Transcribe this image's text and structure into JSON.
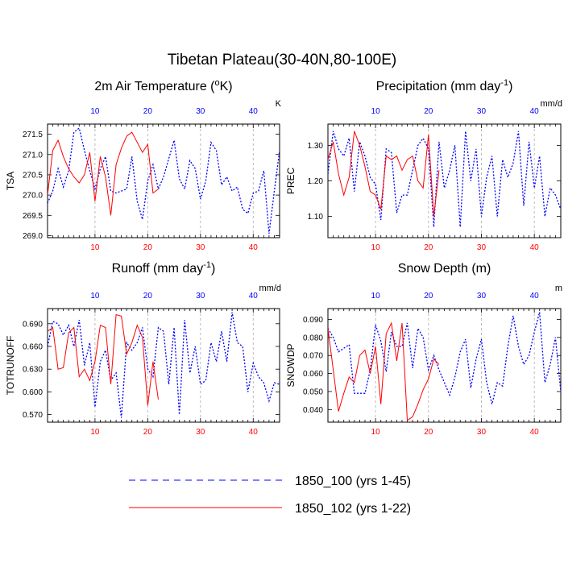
{
  "title": "Tibetan Plateau(30-40N,80-100E)",
  "colors": {
    "series_a": "#0000ff",
    "series_b": "#ff0000",
    "grid": "#aaaaaa",
    "axis": "#000000"
  },
  "legend": {
    "entries": [
      {
        "label": "1850_100 (yrs 1-45)",
        "color": "#0000ff",
        "dash": "dashed"
      },
      {
        "label": "1850_102 (yrs 1-22)",
        "color": "#ff0000",
        "dash": "solid"
      }
    ]
  },
  "chart_data": [
    {
      "type": "line",
      "id": "tsa",
      "title": "2m Air Temperature (°K)",
      "title_main": "2m Air Temperature (",
      "title_sup": "o",
      "title_tail": "K)",
      "ylabel": "TSA",
      "units": "K",
      "xlim": [
        1,
        45
      ],
      "ylim": [
        268.95,
        271.75
      ],
      "yticks": [
        269.0,
        269.5,
        270.0,
        270.5,
        271.0,
        271.5
      ],
      "ytick_labels": [
        "269.0",
        "269.5",
        "270.0",
        "270.5",
        "271.0",
        "271.5"
      ],
      "xticks": [
        10,
        20,
        30,
        40
      ],
      "xtick_labels": [
        "10",
        "20",
        "30",
        "40"
      ],
      "series": [
        {
          "name": "1850_100 (yrs 1-45)",
          "values": [
            269.8,
            270.1,
            270.65,
            270.2,
            270.6,
            271.55,
            271.65,
            271.1,
            270.6,
            270.15,
            270.65,
            270.95,
            270.1,
            270.05,
            270.1,
            270.15,
            270.95,
            269.85,
            269.4,
            270.35,
            270.75,
            270.15,
            270.45,
            270.9,
            271.35,
            270.4,
            270.15,
            270.85,
            270.65,
            269.9,
            270.35,
            271.3,
            271.1,
            270.25,
            270.45,
            270.1,
            270.2,
            269.65,
            269.55,
            270.05,
            270.1,
            270.6,
            269.05,
            270.1,
            271.1
          ]
        },
        {
          "name": "1850_102 (yrs 1-22)",
          "values": [
            270.0,
            271.1,
            271.35,
            270.95,
            270.65,
            270.45,
            270.3,
            270.5,
            271.05,
            269.85,
            270.95,
            270.45,
            269.5,
            270.75,
            271.15,
            271.45,
            271.55,
            271.3,
            271.05,
            271.25,
            270.05,
            270.15
          ]
        }
      ]
    },
    {
      "type": "line",
      "id": "prec",
      "title": "Precipitation (mm day-1)",
      "title_main": "Precipitation (mm day",
      "title_sup": "-1",
      "title_tail": ")",
      "ylabel": "PREC",
      "units": "mm/d",
      "xlim": [
        1,
        45
      ],
      "ylim": [
        1.04,
        1.36
      ],
      "yticks": [
        1.1,
        1.2,
        1.3
      ],
      "ytick_labels": [
        "1.10",
        "1.20",
        "1.30"
      ],
      "xticks": [
        10,
        20,
        30,
        40
      ],
      "xtick_labels": [
        "10",
        "20",
        "30",
        "40"
      ],
      "series": [
        {
          "name": "1850_100 (yrs 1-45)",
          "values": [
            1.22,
            1.34,
            1.29,
            1.27,
            1.32,
            1.17,
            1.31,
            1.27,
            1.21,
            1.19,
            1.09,
            1.29,
            1.28,
            1.11,
            1.16,
            1.16,
            1.23,
            1.3,
            1.32,
            1.29,
            1.07,
            1.31,
            1.18,
            1.23,
            1.3,
            1.07,
            1.34,
            1.2,
            1.29,
            1.1,
            1.21,
            1.27,
            1.1,
            1.26,
            1.21,
            1.25,
            1.34,
            1.13,
            1.31,
            1.18,
            1.27,
            1.1,
            1.18,
            1.16,
            1.12
          ]
        },
        {
          "name": "1850_102 (yrs 1-22)",
          "values": [
            1.26,
            1.31,
            1.22,
            1.16,
            1.21,
            1.34,
            1.3,
            1.24,
            1.17,
            1.16,
            1.12,
            1.27,
            1.26,
            1.27,
            1.23,
            1.26,
            1.27,
            1.2,
            1.18,
            1.33,
            1.1,
            1.23
          ]
        }
      ]
    },
    {
      "type": "line",
      "id": "runoff",
      "title": "Runoff (mm day-1)",
      "title_main": "Runoff (mm day",
      "title_sup": "-1",
      "title_tail": ")",
      "ylabel": "TOTRUNOFF",
      "units": "mm/d",
      "xlim": [
        1,
        45
      ],
      "ylim": [
        0.56,
        0.71
      ],
      "yticks": [
        0.57,
        0.6,
        0.63,
        0.66,
        0.69
      ],
      "ytick_labels": [
        "0.570",
        "0.600",
        "0.630",
        "0.660",
        "0.690"
      ],
      "xticks": [
        10,
        20,
        30,
        40
      ],
      "xtick_labels": [
        "10",
        "20",
        "30",
        "40"
      ],
      "series": [
        {
          "name": "1850_100 (yrs 1-45)",
          "values": [
            0.66,
            0.693,
            0.69,
            0.675,
            0.688,
            0.66,
            0.695,
            0.635,
            0.665,
            0.58,
            0.64,
            0.655,
            0.615,
            0.625,
            0.566,
            0.665,
            0.655,
            0.665,
            0.685,
            0.63,
            0.62,
            0.685,
            0.68,
            0.61,
            0.685,
            0.57,
            0.695,
            0.625,
            0.66,
            0.61,
            0.615,
            0.665,
            0.64,
            0.68,
            0.64,
            0.705,
            0.665,
            0.66,
            0.6,
            0.638,
            0.62,
            0.612,
            0.588,
            0.612,
            0.61
          ]
        },
        {
          "name": "1850_102 (yrs 1-22)",
          "values": [
            0.68,
            0.685,
            0.63,
            0.632,
            0.678,
            0.685,
            0.62,
            0.63,
            0.615,
            0.64,
            0.688,
            0.685,
            0.61,
            0.702,
            0.7,
            0.65,
            0.665,
            0.688,
            0.672,
            0.582,
            0.64,
            0.59
          ]
        }
      ]
    },
    {
      "type": "line",
      "id": "snowdp",
      "title": "Snow Depth (m)",
      "title_main": "Snow Depth (m)",
      "title_sup": "",
      "title_tail": "",
      "ylabel": "SNOWDP",
      "units": "m",
      "xlim": [
        1,
        45
      ],
      "ylim": [
        0.033,
        0.096
      ],
      "yticks": [
        0.04,
        0.05,
        0.06,
        0.07,
        0.08,
        0.09
      ],
      "ytick_labels": [
        "0.040",
        "0.050",
        "0.060",
        "0.070",
        "0.080",
        "0.090"
      ],
      "xticks": [
        10,
        20,
        30,
        40
      ],
      "xtick_labels": [
        "10",
        "20",
        "30",
        "40"
      ],
      "series": [
        {
          "name": "1850_100 (yrs 1-45)",
          "values": [
            0.085,
            0.08,
            0.072,
            0.074,
            0.076,
            0.049,
            0.049,
            0.049,
            0.062,
            0.087,
            0.078,
            0.061,
            0.083,
            0.075,
            0.075,
            0.088,
            0.063,
            0.085,
            0.08,
            0.062,
            0.07,
            0.062,
            0.055,
            0.048,
            0.058,
            0.072,
            0.079,
            0.052,
            0.068,
            0.079,
            0.055,
            0.043,
            0.055,
            0.053,
            0.075,
            0.092,
            0.075,
            0.065,
            0.07,
            0.083,
            0.094,
            0.055,
            0.065,
            0.08,
            0.05
          ]
        },
        {
          "name": "1850_102 (yrs 1-22)",
          "values": [
            0.085,
            0.062,
            0.039,
            0.049,
            0.058,
            0.055,
            0.07,
            0.073,
            0.06,
            0.075,
            0.043,
            0.082,
            0.088,
            0.067,
            0.088,
            0.034,
            0.036,
            0.043,
            0.051,
            0.057,
            0.068,
            0.065
          ]
        }
      ]
    }
  ]
}
